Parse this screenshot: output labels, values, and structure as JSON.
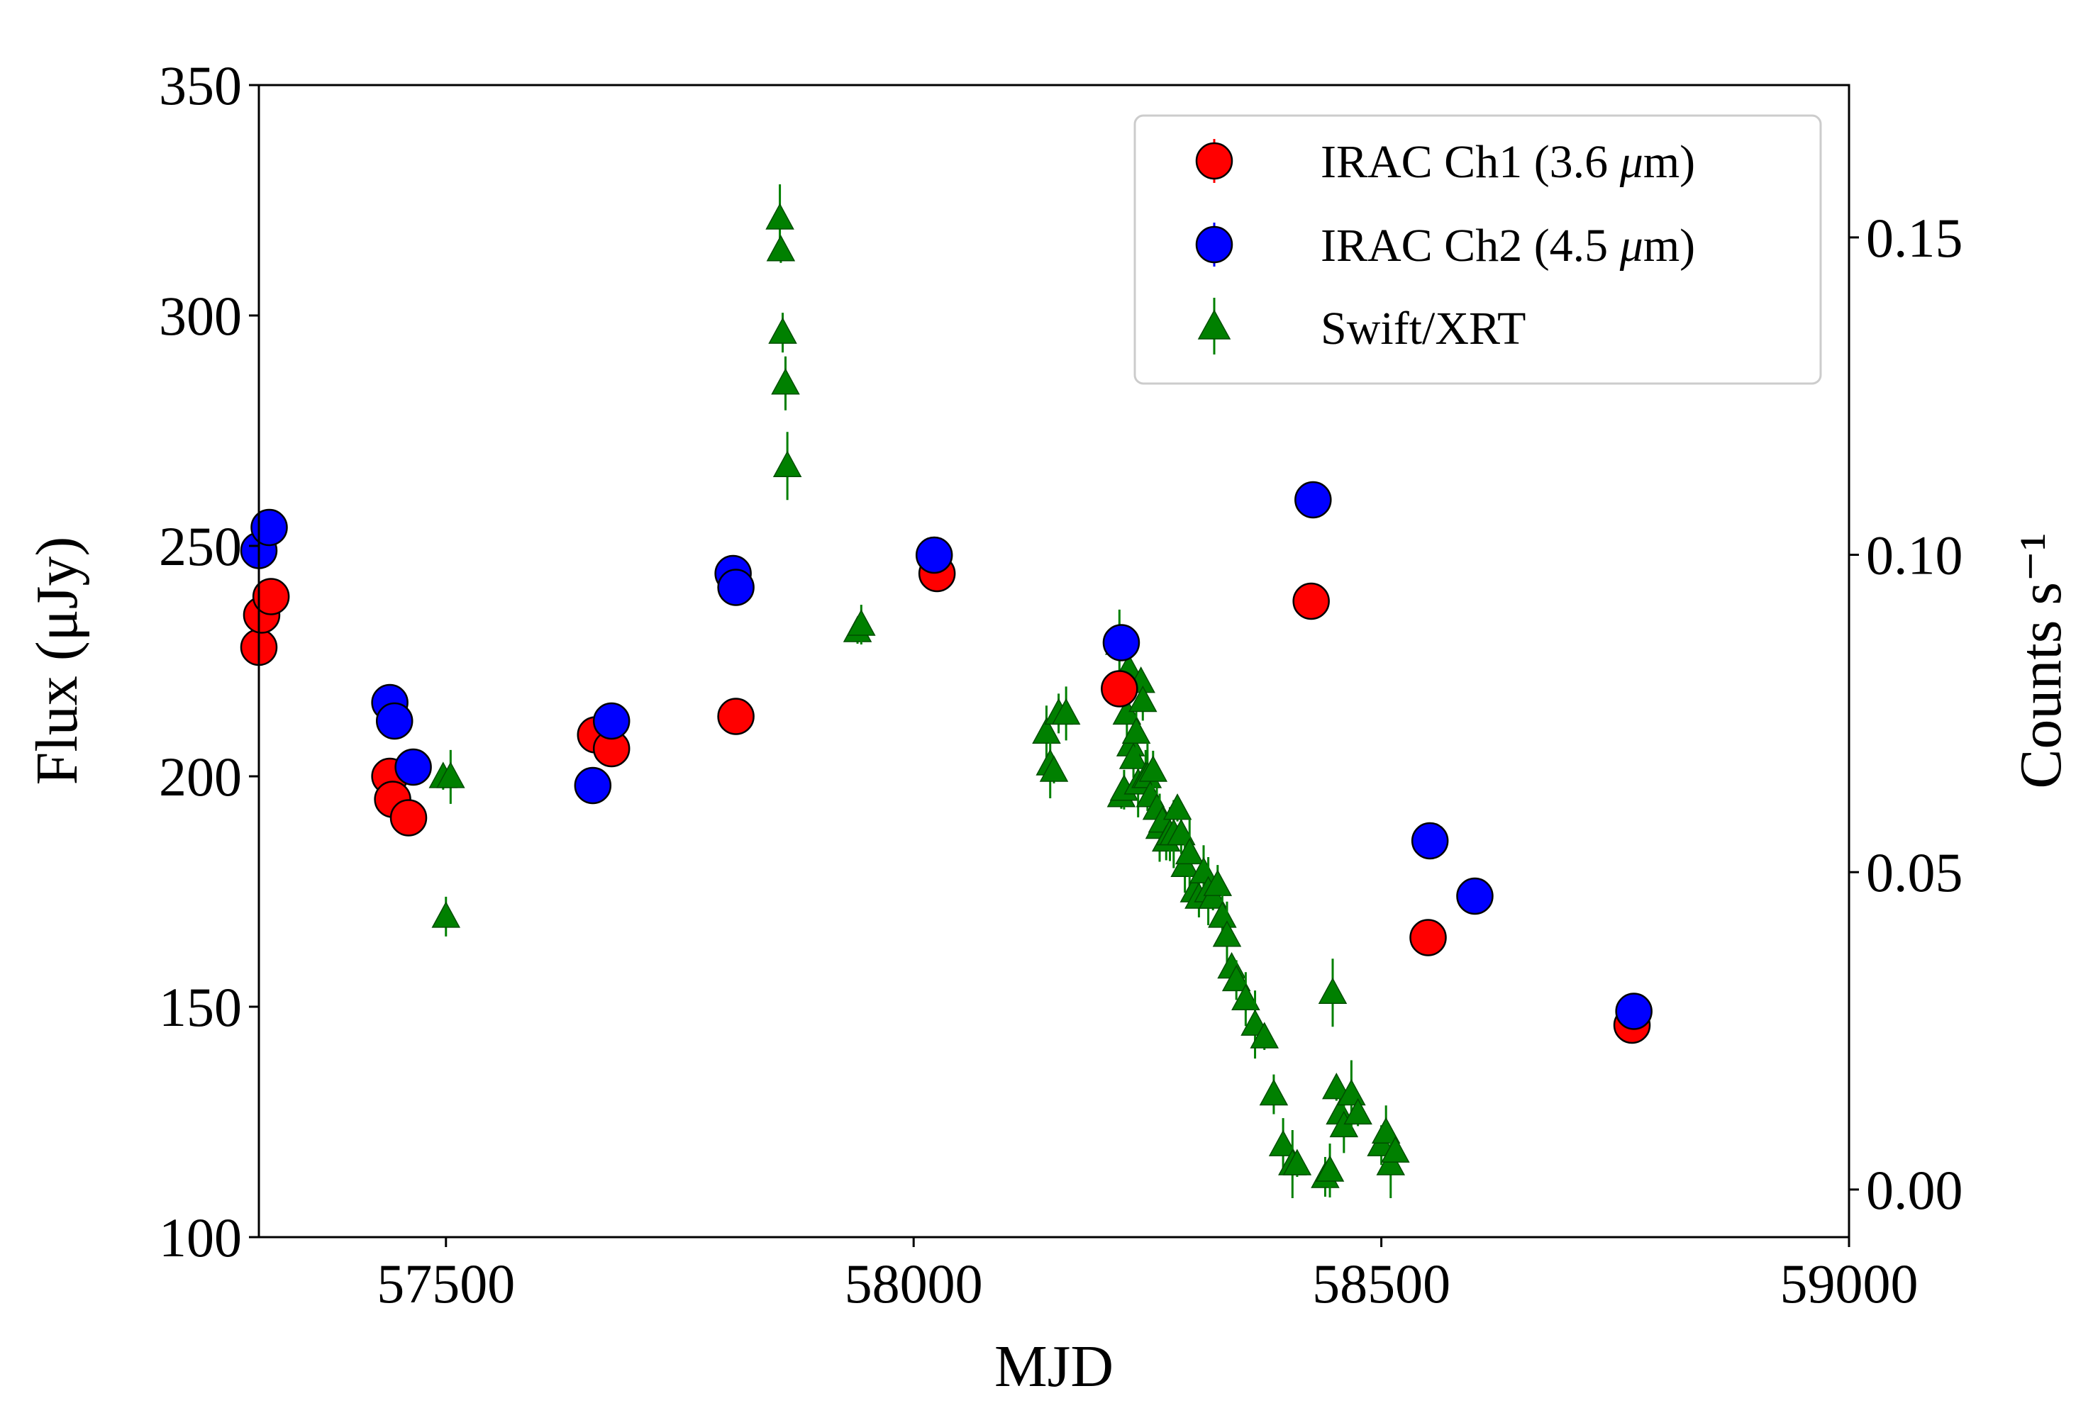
{
  "chart_data": {
    "type": "scatter",
    "title": "",
    "xlabel": "MJD",
    "ylabel": "Flux (μJy)",
    "y2label": "Counts s⁻¹",
    "xlim": [
      57300,
      59000
    ],
    "ylim": [
      100,
      350
    ],
    "y2lim": [
      -0.0075,
      0.174
    ],
    "xticks": [
      57500,
      58000,
      58500,
      59000
    ],
    "yticks": [
      100,
      150,
      200,
      250,
      300,
      350
    ],
    "y2ticks": [
      0.0,
      0.05,
      0.1,
      0.15
    ],
    "xtick_labels": [
      "57500",
      "58000",
      "58500",
      "59000"
    ],
    "ytick_labels": [
      "100",
      "150",
      "200",
      "250",
      "300",
      "350"
    ],
    "y2tick_labels": [
      "0.00",
      "0.05",
      "0.10",
      "0.15"
    ],
    "legend_position": "top-right",
    "series": [
      {
        "name": "IRAC Ch1 (3.6 μm)",
        "legend_prefix": "IRAC Ch1 (3.6 ",
        "legend_mu": "μ",
        "legend_suffix": "m)",
        "color": "#ff0000",
        "marker": "circle",
        "axis": "left",
        "x": [
          57300,
          57303,
          57313,
          57440,
          57443,
          57460,
          57660,
          57677,
          57810,
          58025,
          58220,
          58425,
          58550,
          58768
        ],
        "y": [
          228,
          235,
          239,
          200,
          195,
          191,
          209,
          206,
          213,
          244,
          219,
          238,
          165,
          146
        ]
      },
      {
        "name": "IRAC Ch2 (4.5 μm)",
        "legend_prefix": "IRAC Ch2 (4.5 ",
        "legend_mu": "μ",
        "legend_suffix": "m)",
        "color": "#0000ff",
        "marker": "circle",
        "axis": "left",
        "x": [
          57300,
          57311,
          57440,
          57445,
          57465,
          57657,
          57677,
          57807,
          57810,
          58022,
          58222,
          58427,
          58552,
          58600,
          58770
        ],
        "y": [
          249,
          254,
          216,
          212,
          202,
          198,
          212,
          244,
          241,
          248,
          229,
          260,
          186,
          174,
          149
        ]
      },
      {
        "name": "Swift/XRT",
        "color": "#008000",
        "marker": "triangle",
        "axis": "right",
        "x": [
          57497,
          57500,
          57505,
          57857,
          57858,
          57860,
          57863,
          57865,
          57940,
          57944,
          58142,
          58146,
          58150,
          58155,
          58163,
          58220,
          58222,
          58225,
          58228,
          58230,
          58232,
          58235,
          58238,
          58240,
          58243,
          58245,
          58248,
          58250,
          58253,
          58256,
          58260,
          58263,
          58266,
          58270,
          58274,
          58278,
          58282,
          58286,
          58290,
          58295,
          58300,
          58305,
          58310,
          58315,
          58320,
          58325,
          58330,
          58335,
          58340,
          58345,
          58355,
          58365,
          58375,
          58385,
          58395,
          58405,
          58410,
          58440,
          58445,
          58448,
          58452,
          58456,
          58460,
          58468,
          58475,
          58500,
          58505,
          58510,
          58515
        ],
        "y": [
          0.065,
          0.043,
          0.065,
          0.153,
          0.148,
          0.135,
          0.127,
          0.114,
          0.088,
          0.089,
          0.072,
          0.067,
          0.066,
          0.075,
          0.075,
          0.086,
          0.062,
          0.063,
          0.075,
          0.082,
          0.07,
          0.068,
          0.072,
          0.064,
          0.08,
          0.077,
          0.065,
          0.065,
          0.062,
          0.066,
          0.06,
          0.057,
          0.058,
          0.055,
          0.056,
          0.056,
          0.06,
          0.056,
          0.051,
          0.053,
          0.047,
          0.046,
          0.05,
          0.047,
          0.046,
          0.048,
          0.043,
          0.04,
          0.035,
          0.033,
          0.03,
          0.026,
          0.024,
          0.015,
          0.007,
          0.004,
          0.004,
          0.002,
          0.003,
          0.031,
          0.016,
          0.012,
          0.01,
          0.015,
          0.012,
          0.007,
          0.009,
          0.004,
          0.006
        ]
      }
    ]
  }
}
